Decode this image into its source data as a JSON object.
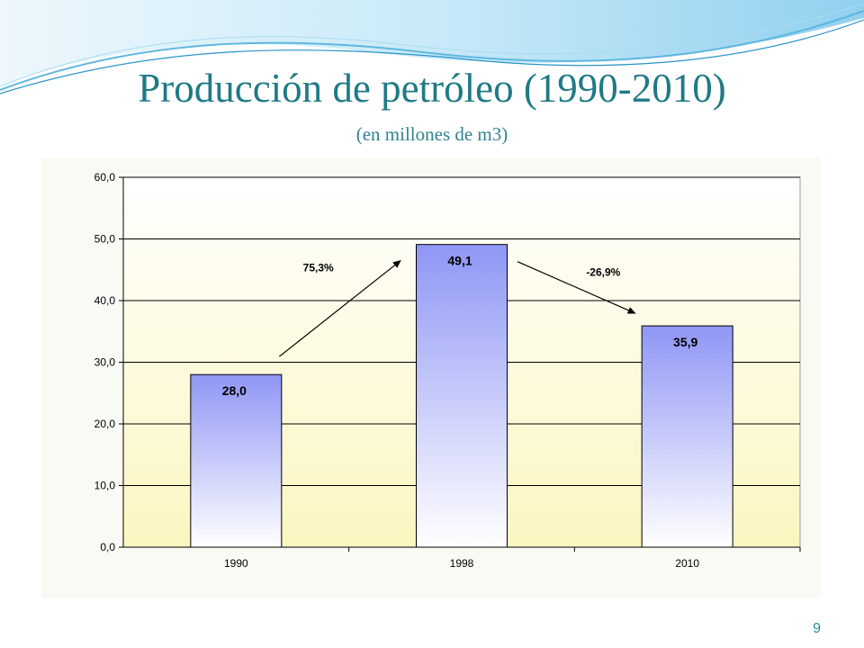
{
  "slide": {
    "title": "Producción de petróleo (1990-2010)",
    "subtitle": "(en millones de m3)",
    "page_number": "9"
  },
  "colors": {
    "title": "#1f7a86",
    "bar_top": "#8f96f5",
    "bar_bottom": "#ffffff",
    "plot_top": "#ffffff",
    "plot_bottom": "#fbf6c0",
    "wave": "#9fd6f0"
  },
  "chart_data": {
    "type": "bar",
    "categories": [
      "1990",
      "1998",
      "2010"
    ],
    "values": [
      28.0,
      49.1,
      35.9
    ],
    "value_labels": [
      "28,0",
      "49,1",
      "35,9"
    ],
    "y_ticks": [
      "0,0",
      "10,0",
      "20,0",
      "30,0",
      "40,0",
      "50,0",
      "60,0"
    ],
    "ylim": [
      0,
      60
    ],
    "grid": true,
    "annotations": [
      {
        "text": "75,3%",
        "from": "1990",
        "to": "1998",
        "direction": "up"
      },
      {
        "text": "-26,9%",
        "from": "1998",
        "to": "2010",
        "direction": "down"
      }
    ]
  }
}
